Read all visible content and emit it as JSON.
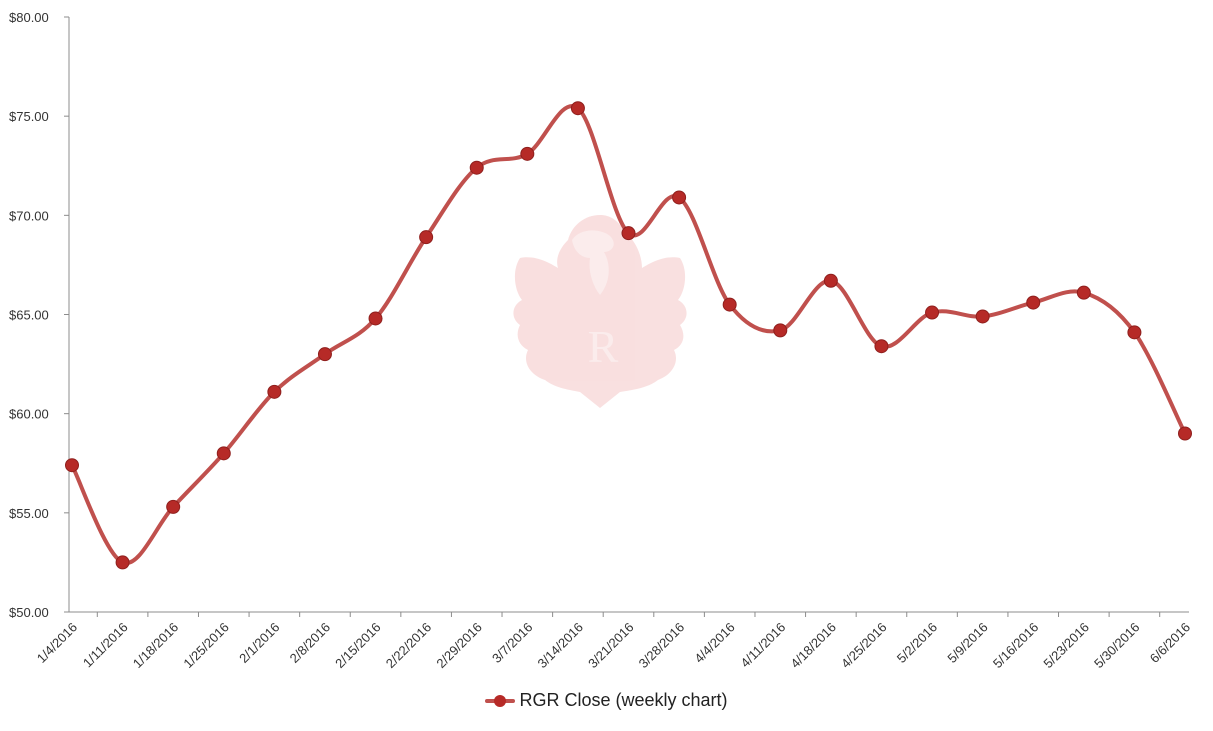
{
  "chart_data": {
    "type": "line",
    "title": "",
    "xlabel": "",
    "ylabel": "",
    "categories": [
      "1/4/2016",
      "1/11/2016",
      "1/18/2016",
      "1/25/2016",
      "2/1/2016",
      "2/8/2016",
      "2/15/2016",
      "2/22/2016",
      "2/29/2016",
      "3/7/2016",
      "3/14/2016",
      "3/21/2016",
      "3/28/2016",
      "4/4/2016",
      "4/11/2016",
      "4/18/2016",
      "4/25/2016",
      "5/2/2016",
      "5/9/2016",
      "5/16/2016",
      "5/23/2016",
      "5/30/2016",
      "6/6/2016"
    ],
    "series": [
      {
        "name": "RGR Close  (weekly chart)",
        "values": [
          57.4,
          52.5,
          55.3,
          58.0,
          61.1,
          63.0,
          64.8,
          68.9,
          72.4,
          73.1,
          75.4,
          69.1,
          70.9,
          65.5,
          64.2,
          66.7,
          63.4,
          65.1,
          64.9,
          65.6,
          66.1,
          64.1,
          59.0
        ]
      }
    ],
    "ylim": [
      50,
      80
    ],
    "yticks": [
      50,
      55,
      60,
      65,
      70,
      75,
      80
    ],
    "ytick_labels": [
      "$50.00",
      "$55.00",
      "$60.00",
      "$65.00",
      "$70.00",
      "$75.00",
      "$80.00"
    ],
    "grid": false,
    "legend_position": "bottom",
    "smooth": true,
    "colors": {
      "line": "#c0504d",
      "marker": "#b62a27",
      "axis": "#8c8c8c",
      "watermark": "#f6d2d1"
    },
    "watermark": {
      "icon": "eagle-logo",
      "letter": "R"
    }
  }
}
